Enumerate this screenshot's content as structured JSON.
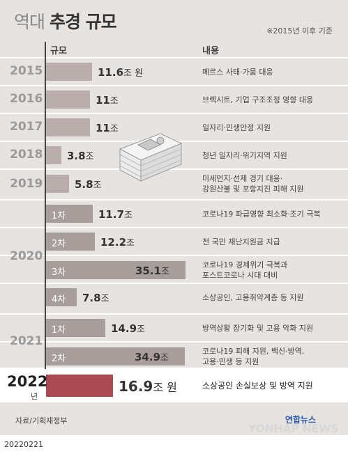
{
  "header": {
    "title_prefix": "역대",
    "title_main": "추경 규모",
    "note": "※2015년 이후 기준",
    "col_size": "규모",
    "col_content": "내용"
  },
  "chart_data": {
    "type": "bar",
    "orientation": "horizontal",
    "unit": "조",
    "rows": [
      {
        "year": "2015",
        "sub": "",
        "value": 11.6,
        "value_num": "11.6",
        "unit_text": "조 원",
        "desc": [
          "메르스 사태·가뭄 대응"
        ]
      },
      {
        "year": "2016",
        "sub": "",
        "value": 11,
        "value_num": "11",
        "unit_text": "조",
        "desc": [
          "브렉시트, 기업 구조조정 영향 대응"
        ]
      },
      {
        "year": "2017",
        "sub": "",
        "value": 11,
        "value_num": "11",
        "unit_text": "조",
        "desc": [
          "일자리·민생안정 지원"
        ]
      },
      {
        "year": "2018",
        "sub": "",
        "value": 3.8,
        "value_num": "3.8",
        "unit_text": "조",
        "desc": [
          "청년 일자리·위기지역 지원"
        ]
      },
      {
        "year": "2019",
        "sub": "",
        "value": 5.8,
        "value_num": "5.8",
        "unit_text": "조",
        "desc": [
          "미세먼지·선제 경기 대응·",
          "강원산불 및 포항지진 피해 지원"
        ]
      },
      {
        "year": "2020",
        "sub": "1차",
        "value": 11.7,
        "value_num": "11.7",
        "unit_text": "조",
        "desc": [
          "코로나19 파급영향 최소화·조기 극복"
        ]
      },
      {
        "year": "2020",
        "sub": "2차",
        "value": 12.2,
        "value_num": "12.2",
        "unit_text": "조",
        "desc": [
          "전 국민 재난지원금 지급"
        ]
      },
      {
        "year": "2020",
        "sub": "3차",
        "value": 35.1,
        "value_num": "35.1",
        "unit_text": "조",
        "desc": [
          "코로나19 경제위기 극복과",
          "포스트코로나 시대 대비"
        ]
      },
      {
        "year": "2020",
        "sub": "4차",
        "value": 7.8,
        "value_num": "7.8",
        "unit_text": "조",
        "desc": [
          "소상공인, 고용취약계층 등 지원"
        ]
      },
      {
        "year": "2021",
        "sub": "1차",
        "value": 14.9,
        "value_num": "14.9",
        "unit_text": "조",
        "desc": [
          "방역상황 장기화 및 고용 악화 지원"
        ]
      },
      {
        "year": "2021",
        "sub": "2차",
        "value": 34.9,
        "value_num": "34.9",
        "unit_text": "조",
        "desc": [
          "코로나19 피해 지원, 백신·방역,",
          "고용·민생 등 지원"
        ]
      },
      {
        "year": "2022",
        "sub": "",
        "year_suffix": "년",
        "value": 16.9,
        "value_num": "16.9",
        "unit_text": "조 원",
        "desc": [
          "소상공인 손실보상 및 방역 지원"
        ],
        "highlight": true
      }
    ],
    "colors": {
      "bar": "#b9aeab",
      "bar_highlight": "#a94a52"
    }
  },
  "footer": {
    "source": "자료/기획재정부",
    "logo_ko": "연합뉴스",
    "logo_en": "YONHAP NEWS",
    "date": "20220221"
  }
}
